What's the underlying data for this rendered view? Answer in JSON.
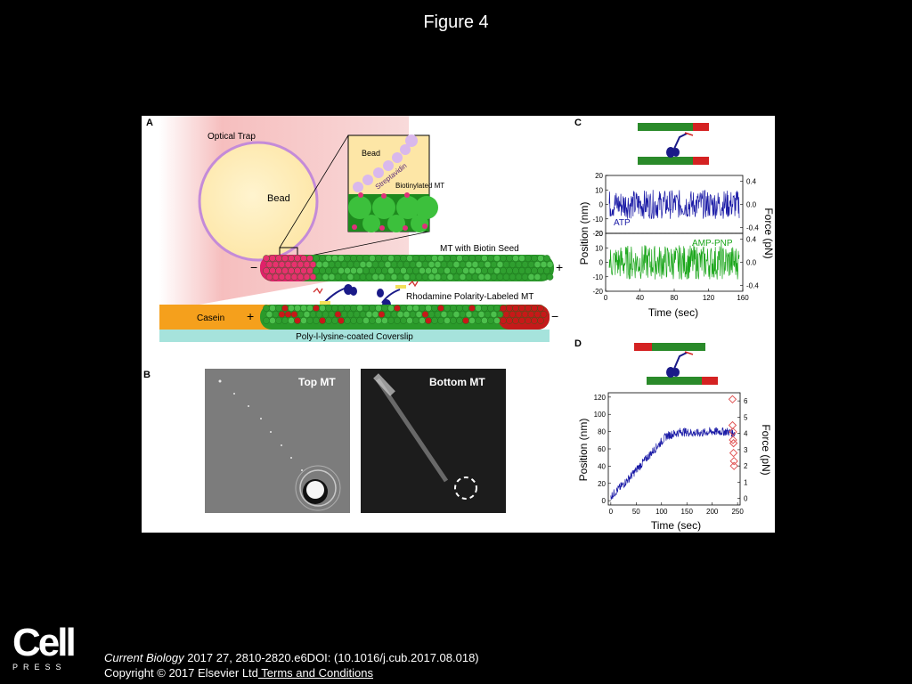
{
  "slide": {
    "title": "Figure 4"
  },
  "panels": {
    "A": {
      "letter": "A",
      "optical_trap": "Optical Trap",
      "bead": "Bead",
      "inset_bead": "Bead",
      "streptavidin": "Streptavidin",
      "biotinylated_mt": "Biotinylated MT",
      "mt_with_seed": "MT with Biotin Seed",
      "minus": "−",
      "plus": "+",
      "rhodamine": "Rhodamine Polarity-Labeled MT",
      "casein": "Casein",
      "coverslip": "Poly-l-lysine-coated Coverslip"
    },
    "B": {
      "letter": "B",
      "top_mt": "Top MT",
      "bottom_mt": "Bottom MT"
    },
    "C": {
      "letter": "C",
      "ylabel_left": "Position (nm)",
      "ylabel_right": "Force (pN)",
      "xlabel": "Time (sec)",
      "atp_label": "ATP",
      "amppnp_label": "AMP-PNP",
      "atp_color": "#1a1aa6",
      "amppnp_color": "#1aa61a"
    },
    "D": {
      "letter": "D",
      "ylabel_left": "Position (nm)",
      "ylabel_right": "Force (pN)",
      "xlabel": "Time (sec)",
      "trace_color": "#1a1aa6",
      "marker_color": "#e05555"
    }
  },
  "chart_data": [
    {
      "type": "line",
      "panel": "C-top",
      "series": [
        {
          "name": "ATP",
          "mean": 0,
          "noise_amplitude": 10
        }
      ],
      "x_ticks": [],
      "xlim": [
        0,
        160
      ],
      "y_ticks": [
        "20",
        "10",
        "0",
        "-10",
        "-20"
      ],
      "ylim": [
        -20,
        20
      ],
      "y2_ticks": [
        "0.4",
        "0.0",
        "-0.4"
      ],
      "y2lim": [
        -0.5,
        0.5
      ]
    },
    {
      "type": "line",
      "panel": "C-bottom",
      "series": [
        {
          "name": "AMP-PNP",
          "mean": 0,
          "noise_amplitude": 12
        }
      ],
      "x_ticks": [
        "0",
        "40",
        "80",
        "120",
        "160"
      ],
      "xlim": [
        0,
        160
      ],
      "y_ticks": [
        "20",
        "10",
        "0",
        "-10",
        "-20"
      ],
      "ylim": [
        -20,
        20
      ],
      "y2_ticks": [
        "0.4",
        "0.0",
        "-0.4"
      ],
      "y2lim": [
        -0.5,
        0.5
      ]
    },
    {
      "type": "line",
      "panel": "D",
      "series": [
        {
          "name": "",
          "x": [
            0,
            30,
            60,
            90,
            110,
            140,
            170,
            200,
            230,
            245
          ],
          "y": [
            5,
            22,
            42,
            62,
            75,
            80,
            78,
            80,
            80,
            78
          ]
        }
      ],
      "markers": {
        "x": [
          240,
          240,
          241,
          241,
          242,
          242,
          243,
          243
        ],
        "y_force": [
          6.1,
          4.5,
          4.1,
          3.6,
          3.4,
          2.8,
          2.3,
          2.0
        ]
      },
      "x_ticks": [
        "0",
        "50",
        "100",
        "150",
        "200",
        "250"
      ],
      "xlim": [
        -5,
        255
      ],
      "y_ticks": [
        "120",
        "100",
        "80",
        "60",
        "40",
        "20",
        "0"
      ],
      "ylim": [
        -5,
        125
      ],
      "y2_ticks": [
        "6",
        "5",
        "4",
        "3",
        "2",
        "1",
        "0"
      ],
      "y2lim": [
        -0.4,
        6.5
      ]
    }
  ],
  "footer": {
    "journal": "Current Biology",
    "citation": " 2017 27, 2810-2820.e6DOI: (10.1016/j.cub.2017.08.018)",
    "copyright": "Copyright © 2017 Elsevier Ltd",
    "terms_link": " Terms and Conditions"
  },
  "logo": {
    "name": "Cell",
    "sub": "PRESS"
  }
}
